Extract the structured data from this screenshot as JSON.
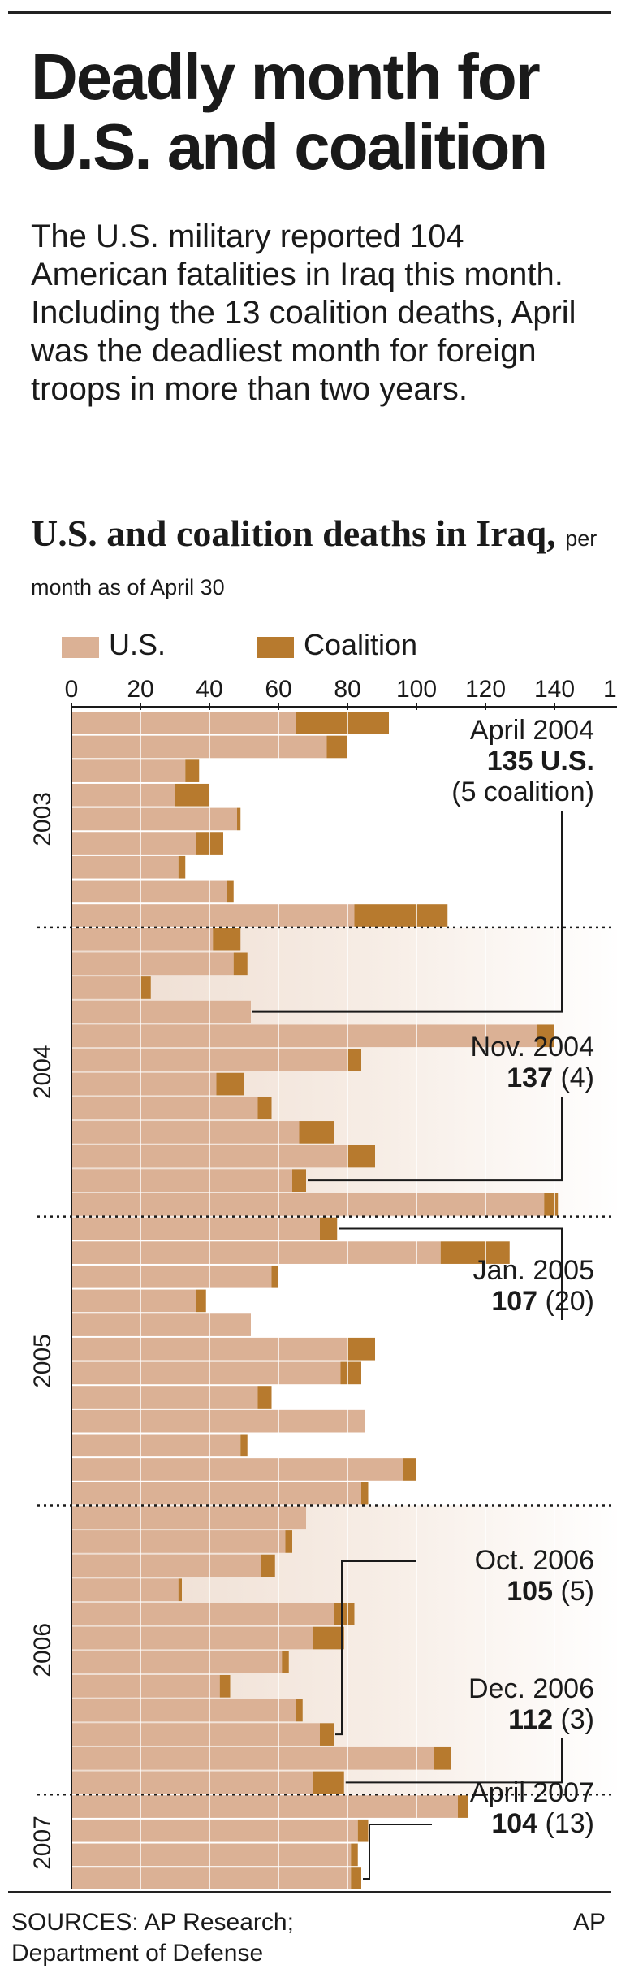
{
  "headline": "Deadly month for U.S. and coalition",
  "intro": "The U.S. military reported 104 American fatalities in Iraq this month. Including the 13 coalition deaths, April was the deadliest month for foreign troops in more than two years.",
  "subtitle_main": "U.S. and coalition deaths in Iraq,",
  "subtitle_note": "per month as of April 30",
  "legend": [
    {
      "label": "U.S.",
      "color": "#dbb195"
    },
    {
      "label": "Coalition",
      "color": "#b77a2e"
    }
  ],
  "source": "SOURCES: AP Research; Department of Defense",
  "credit": "AP",
  "annotations": [
    {
      "month_index": 12,
      "line1": "April 2004",
      "value_bold": "135 U.S.",
      "value_rest": "",
      "line3": "(5 coalition)"
    },
    {
      "month_index": 19,
      "line1": "Nov. 2004",
      "value_bold": "137",
      "value_rest": " (4)"
    },
    {
      "month_index": 21,
      "line1": "Jan. 2005",
      "value_bold": "107",
      "value_rest": " (20)"
    },
    {
      "month_index": 42,
      "line1": "Oct. 2006",
      "value_bold": "105",
      "value_rest": " (5)"
    },
    {
      "month_index": 44,
      "line1": "Dec. 2006",
      "value_bold": "112",
      "value_rest": " (3)"
    },
    {
      "month_index": 48,
      "line1": "April 2007",
      "value_bold": "104",
      "value_rest": " (13)"
    }
  ],
  "chart_data": {
    "type": "bar",
    "orientation": "horizontal",
    "stacked": true,
    "x_ticks": [
      "0",
      "20",
      "40",
      "60",
      "80",
      "100",
      "120",
      "140",
      "160"
    ],
    "xlim": [
      0,
      160
    ],
    "year_labels": [
      {
        "label": "2003",
        "start": 0,
        "end": 9
      },
      {
        "label": "2004",
        "start": 9,
        "end": 21
      },
      {
        "label": "2005",
        "start": 21,
        "end": 33
      },
      {
        "label": "2006",
        "start": 33,
        "end": 45
      },
      {
        "label": "2007",
        "start": 45,
        "end": 49
      }
    ],
    "categories": [
      "Mar 2003",
      "Apr 2003",
      "May 2003",
      "Jun 2003",
      "Jul 2003",
      "Aug 2003",
      "Sep 2003",
      "Oct 2003",
      "Nov 2003",
      "Dec 2003",
      "Jan 2004",
      "Feb 2004",
      "Mar 2004",
      "Apr 2004",
      "May 2004",
      "Jun 2004",
      "Jul 2004",
      "Aug 2004",
      "Sep 2004",
      "Oct 2004",
      "Nov 2004",
      "Dec 2004",
      "Jan 2005",
      "Feb 2005",
      "Mar 2005",
      "Apr 2005",
      "May 2005",
      "Jun 2005",
      "Jul 2005",
      "Aug 2005",
      "Sep 2005",
      "Oct 2005",
      "Nov 2005",
      "Dec 2005",
      "Jan 2006",
      "Feb 2006",
      "Mar 2006",
      "Apr 2006",
      "May 2006",
      "Jun 2006",
      "Jul 2006",
      "Aug 2006",
      "Sep 2006",
      "Oct 2006",
      "Nov 2006",
      "Dec 2006",
      "Jan 2007",
      "Feb 2007",
      "Mar 2007",
      "Apr 2007"
    ],
    "series": [
      {
        "name": "U.S.",
        "values": [
          65,
          74,
          33,
          30,
          48,
          36,
          31,
          45,
          82,
          41,
          47,
          20,
          52,
          135,
          80,
          42,
          54,
          66,
          80,
          64,
          137,
          72,
          107,
          58,
          36,
          52,
          80,
          78,
          54,
          85,
          49,
          96,
          84,
          68,
          62,
          55,
          31,
          76,
          70,
          61,
          43,
          65,
          72,
          105,
          70,
          112,
          83,
          81,
          81,
          104
        ]
      },
      {
        "name": "Coalition",
        "values": [
          27,
          6,
          4,
          10,
          1,
          8,
          2,
          2,
          27,
          8,
          4,
          3,
          0,
          5,
          4,
          8,
          4,
          10,
          8,
          4,
          4,
          5,
          20,
          2,
          3,
          0,
          8,
          6,
          4,
          0,
          2,
          4,
          2,
          0,
          2,
          4,
          1,
          6,
          9,
          2,
          3,
          2,
          4,
          5,
          9,
          3,
          3,
          2,
          3,
          13
        ]
      }
    ]
  }
}
